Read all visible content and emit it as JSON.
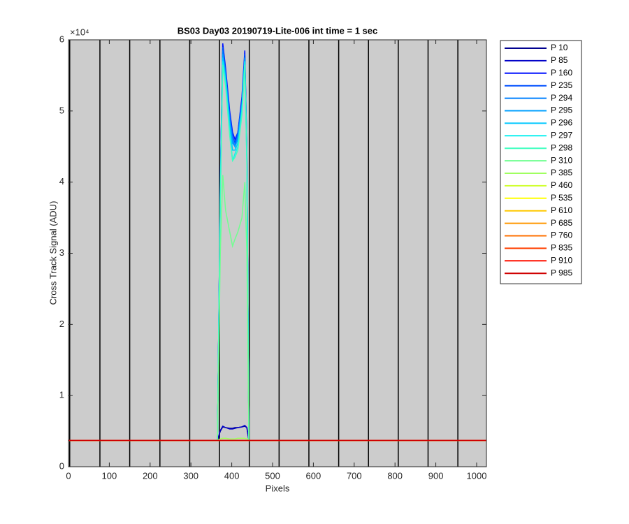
{
  "chart_data": {
    "type": "line",
    "title": "BS03 Day03 20190719-Lite-006 int time = 1 sec",
    "x_label": "Pixels",
    "y_label": "Cross Track Signal (ADU)",
    "y_exponent": "×10⁴",
    "xlim": [
      0,
      1024
    ],
    "ylim": [
      0,
      60000
    ],
    "xticks": [
      0,
      100,
      200,
      300,
      400,
      500,
      600,
      700,
      800,
      900,
      1000
    ],
    "yticks": [
      {
        "value": 0,
        "label": "0"
      },
      {
        "value": 10000,
        "label": "1"
      },
      {
        "value": 20000,
        "label": "2"
      },
      {
        "value": 30000,
        "label": "3"
      },
      {
        "value": 40000,
        "label": "4"
      },
      {
        "value": 50000,
        "label": "5"
      },
      {
        "value": 60000,
        "label": "6"
      }
    ],
    "vertical_lines": {
      "color": "#000000",
      "x": [
        3,
        77,
        150,
        224,
        297,
        370,
        443,
        516,
        589,
        662,
        735,
        808,
        881,
        954
      ]
    },
    "plot_background": "#cccccc",
    "legend": "outside-right",
    "x": [
      0,
      365,
      372,
      378,
      385,
      395,
      402,
      408,
      415,
      425,
      432,
      437,
      442,
      1023
    ],
    "series": [
      {
        "name": "P 10",
        "color": "#00008f",
        "values": [
          3700,
          3700,
          5000,
          5600,
          5500,
          5400,
          5400,
          5500,
          5500,
          5600,
          5700,
          5500,
          3700,
          3700
        ]
      },
      {
        "name": "P 85",
        "color": "#0000c8",
        "values": [
          3700,
          3700,
          5100,
          5700,
          5500,
          5300,
          5300,
          5400,
          5500,
          5600,
          5800,
          5500,
          3700,
          3700
        ]
      },
      {
        "name": "P 160",
        "color": "#0010ff",
        "values": [
          3700,
          3700,
          40000,
          59500,
          56000,
          50000,
          47000,
          46000,
          47000,
          52000,
          58500,
          45000,
          3700,
          3700
        ]
      },
      {
        "name": "P 235",
        "color": "#0050ff",
        "values": [
          3700,
          3700,
          40000,
          59000,
          55500,
          49500,
          46500,
          45500,
          47000,
          51500,
          58000,
          45000,
          3700,
          3700
        ]
      },
      {
        "name": "P 294",
        "color": "#0080ff",
        "values": [
          3700,
          3700,
          39500,
          58500,
          55000,
          49000,
          46000,
          45000,
          46500,
          51000,
          57500,
          44500,
          3700,
          3700
        ]
      },
      {
        "name": "P 295",
        "color": "#00a0ff",
        "values": [
          3700,
          3700,
          39000,
          58000,
          55000,
          48500,
          45500,
          45000,
          46000,
          51000,
          57500,
          44000,
          3700,
          3700
        ]
      },
      {
        "name": "P 296",
        "color": "#00c8ff",
        "values": [
          3700,
          3700,
          38500,
          57500,
          54500,
          48000,
          44500,
          44500,
          45500,
          50500,
          57000,
          43500,
          3700,
          3700
        ]
      },
      {
        "name": "P 297",
        "color": "#10f0f0",
        "values": [
          3700,
          3700,
          38000,
          57000,
          54000,
          47000,
          43000,
          44000,
          45000,
          50000,
          57000,
          43000,
          3700,
          3700
        ]
      },
      {
        "name": "P 298",
        "color": "#40ffc0",
        "values": [
          3700,
          3700,
          37500,
          56500,
          53500,
          46500,
          43000,
          43500,
          44500,
          49500,
          56500,
          42500,
          3700,
          3700
        ]
      },
      {
        "name": "P 310",
        "color": "#70ff90",
        "values": [
          3700,
          3700,
          30000,
          41000,
          36000,
          33000,
          31000,
          32000,
          33000,
          35000,
          40000,
          30000,
          3700,
          3700
        ]
      },
      {
        "name": "P 385",
        "color": "#a0ff60",
        "values": [
          3700,
          3700,
          3900,
          4000,
          4000,
          3900,
          3900,
          3900,
          4000,
          4000,
          4000,
          3900,
          3700,
          3700
        ]
      },
      {
        "name": "P 460",
        "color": "#d0ff30",
        "values": [
          3700,
          3700,
          3700,
          3700,
          3700,
          3700,
          3700,
          3700,
          3700,
          3700,
          3700,
          3700,
          3700,
          3700
        ]
      },
      {
        "name": "P 535",
        "color": "#ffff00",
        "values": [
          3700,
          3700,
          3700,
          3700,
          3700,
          3700,
          3700,
          3700,
          3700,
          3700,
          3700,
          3700,
          3700,
          3700
        ]
      },
      {
        "name": "P 610",
        "color": "#ffc800",
        "values": [
          3700,
          3700,
          3700,
          3700,
          3700,
          3700,
          3700,
          3700,
          3700,
          3700,
          3700,
          3700,
          3700,
          3700
        ]
      },
      {
        "name": "P 685",
        "color": "#ff9800",
        "values": [
          3700,
          3700,
          3700,
          3700,
          3700,
          3700,
          3700,
          3700,
          3700,
          3700,
          3700,
          3700,
          3700,
          3700
        ]
      },
      {
        "name": "P 760",
        "color": "#ff7000",
        "values": [
          3700,
          3700,
          3700,
          3700,
          3700,
          3700,
          3700,
          3700,
          3700,
          3700,
          3700,
          3700,
          3700,
          3700
        ]
      },
      {
        "name": "P 835",
        "color": "#ff4000",
        "values": [
          3700,
          3700,
          3700,
          3700,
          3700,
          3700,
          3700,
          3700,
          3700,
          3700,
          3700,
          3700,
          3700,
          3700
        ]
      },
      {
        "name": "P 910",
        "color": "#ff1000",
        "values": [
          3700,
          3700,
          3700,
          3700,
          3700,
          3700,
          3700,
          3700,
          3700,
          3700,
          3700,
          3700,
          3700,
          3700
        ]
      },
      {
        "name": "P 985",
        "color": "#d00000",
        "values": [
          3700,
          3700,
          3700,
          3700,
          3700,
          3700,
          3700,
          3700,
          3700,
          3700,
          3700,
          3700,
          3700,
          3700
        ]
      }
    ]
  }
}
